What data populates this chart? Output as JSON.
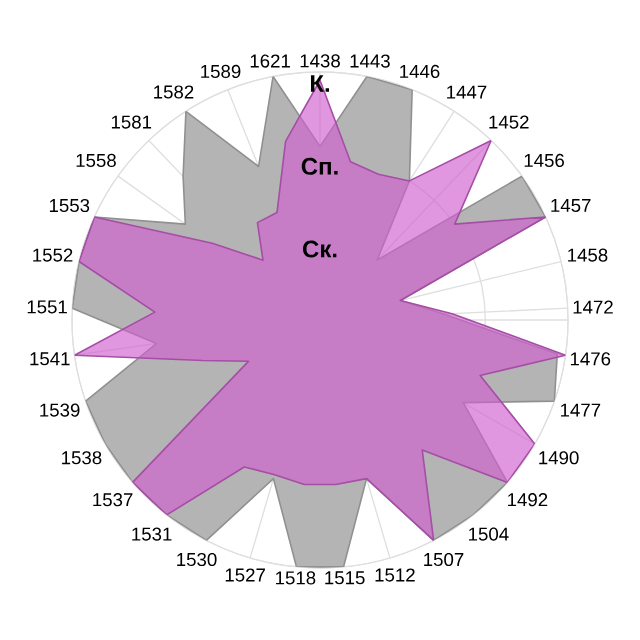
{
  "chart_data": {
    "type": "radar",
    "categories": [
      "1438",
      "1443",
      "1446",
      "1447",
      "1452",
      "1456",
      "1457",
      "1458",
      "1472",
      "1476",
      "1477",
      "1490",
      "1492",
      "1504",
      "1507",
      "1512",
      "1515",
      "1518",
      "1527",
      "1530",
      "1531",
      "1537",
      "1538",
      "1539",
      "1541",
      "1551",
      "1552",
      "1553",
      "1558",
      "1581",
      "1582",
      "1589",
      "1621"
    ],
    "series": [
      {
        "color": "#b4b4b4",
        "values": [
          2.1,
          3.0,
          3.0,
          2.0,
          1.0,
          3.0,
          3.0,
          1.0,
          1.5,
          2.9,
          3.0,
          2.0,
          3.0,
          3.0,
          3.0,
          2.0,
          3.0,
          3.0,
          2.0,
          3.0,
          3.0,
          3.0,
          3.0,
          3.0,
          2.0,
          3.0,
          3.0,
          3.0,
          2.0,
          2.4,
          3.0,
          2.0,
          3.0
        ]
      },
      {
        "color": "#d060d0",
        "values": [
          2.9,
          1.95,
          1.9,
          2.0,
          3.0,
          2.0,
          3.0,
          1.0,
          1.6,
          3.0,
          2.05,
          3.0,
          3.0,
          2.0,
          3.0,
          2.0,
          2.0,
          2.0,
          1.95,
          2.0,
          3.0,
          3.0,
          1.0,
          1.5,
          3.0,
          2.0,
          3.0,
          3.0,
          1.6,
          1.0,
          1.4,
          1.4,
          2.2
        ]
      }
    ],
    "ylim": [
      0,
      3
    ],
    "yticks": [
      {
        "value": 1,
        "label": "Ск."
      },
      {
        "value": 2,
        "label": "Сп."
      },
      {
        "value": 3,
        "label": "К."
      }
    ],
    "grid": true
  }
}
